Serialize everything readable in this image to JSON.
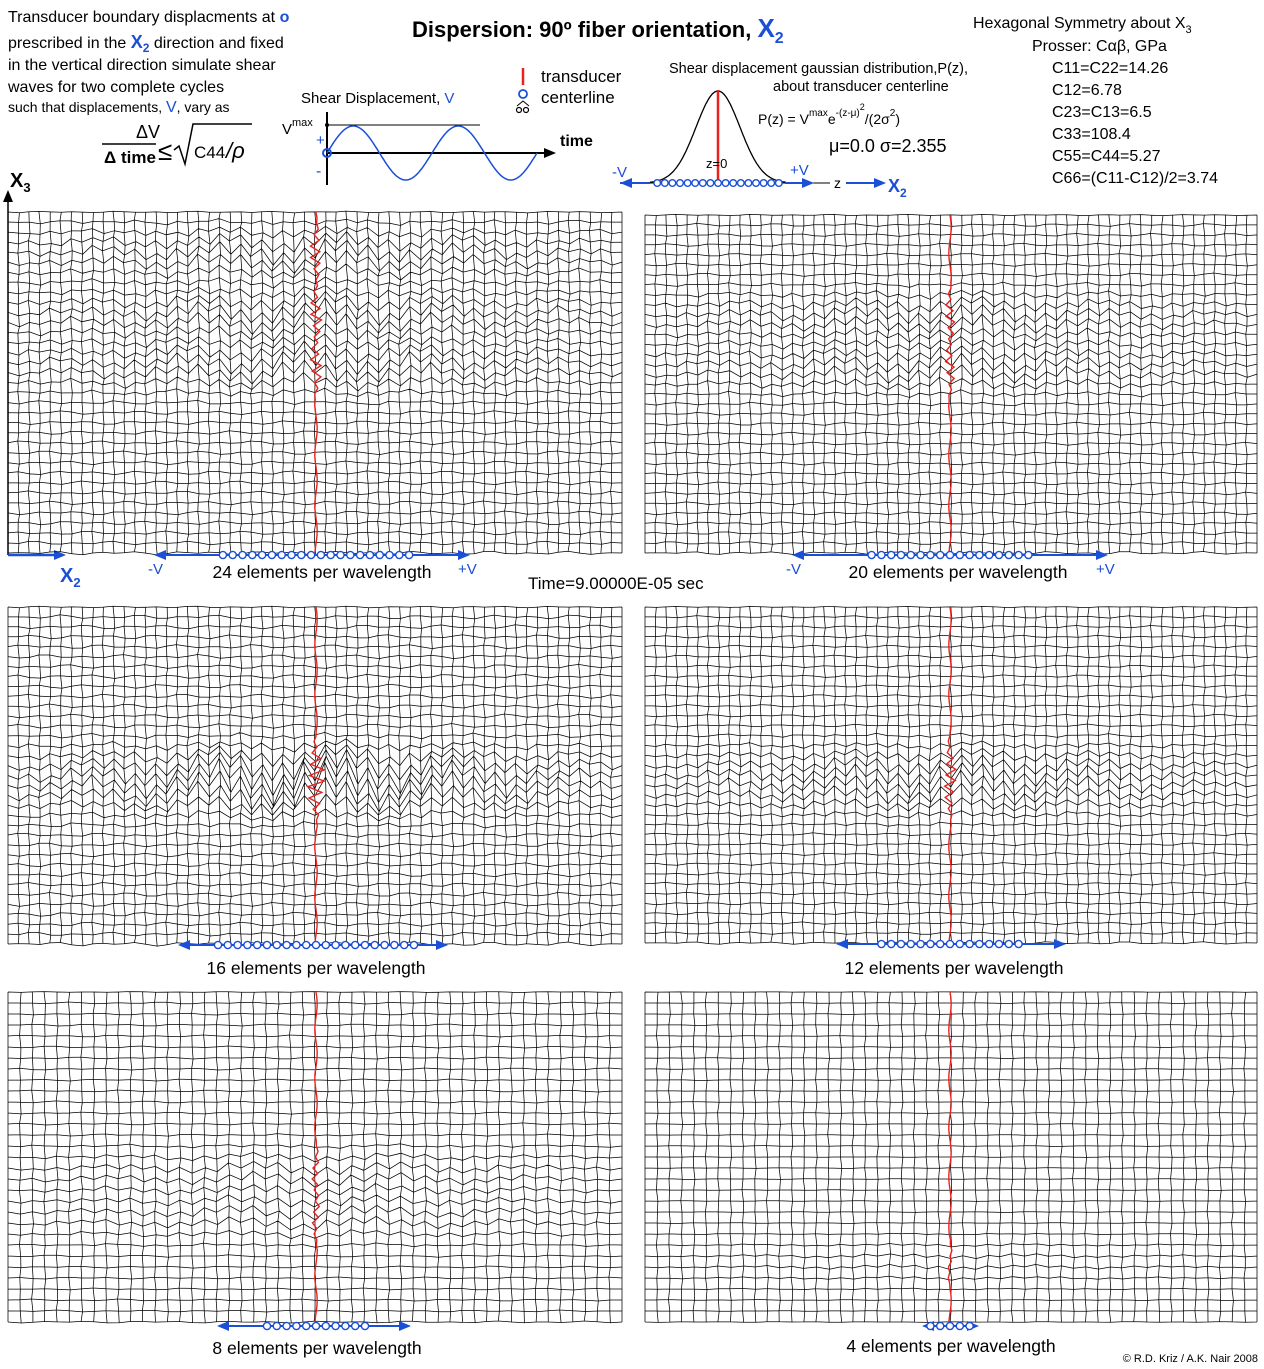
{
  "title": {
    "main": "Dispersion: 90º fiber orientation,",
    "axis": "X",
    "axis_sub": "2"
  },
  "intro": {
    "line1": "Transducer boundary displacments at",
    "line1_marker": "o",
    "line2_a": "prescribed in the",
    "line2_axis": "X",
    "line2_axis_sub": "2",
    "line2_b": "direction and fixed",
    "line3": "in the vertical direction simulate shear",
    "line4": "waves for two complete cycles",
    "line5_a": "such that displacements,",
    "line5_v": "V",
    "line5_b": ", vary as",
    "frac_num": "ΔV",
    "frac_den": "Δ time",
    "leq": "≤",
    "sqrt_arg": "C44",
    "sqrt_div": "/ρ"
  },
  "shear_plot": {
    "label": "Shear Displacement,",
    "label_v": "V",
    "vmax": "V",
    "vmax_sup": "max",
    "plus": "+",
    "minus": "-",
    "time_label": "time"
  },
  "legend": {
    "line1": "transducer",
    "line2": "centerline"
  },
  "gaussian": {
    "label1": "Shear displacement gaussian distribution,P(z),",
    "label2": "about transducer centerline",
    "formula": "P(z) = V",
    "formula_sup1": "max",
    "formula_mid": "e",
    "formula_sup2": "-(z-μ)",
    "formula_sup3": "2",
    "formula_tail": "/(2σ",
    "formula_sup4": "2",
    "formula_end": ")",
    "params": "μ=0.0   σ=2.355",
    "z0": "z=0",
    "minus_v": "-V",
    "plus_v": "+V",
    "z_axis": "z",
    "x_axis": "X",
    "x_axis_sub": "2"
  },
  "properties": {
    "title": "Hexagonal Symmetry about X",
    "title_sub": "3",
    "subtitle": "Prosser: Cαβ, GPa",
    "lines": [
      "C11=C22=14.26",
      "C12=6.78",
      "C23=C13=6.5",
      "C33=108.4",
      "C55=C44=5.27",
      "C66=(C11-C12)/2=3.74"
    ]
  },
  "axes": {
    "x3": "X",
    "x3_sub": "3",
    "x2": "X",
    "x2_sub": "2"
  },
  "time_label": "Time=9.00000E-05 sec",
  "panels": [
    {
      "label": "24 elements per wavelength",
      "minus": "-V",
      "plus": "+V"
    },
    {
      "label": "20 elements per wavelength",
      "minus": "-V",
      "plus": "+V"
    },
    {
      "label": "16 elements per wavelength",
      "minus": "",
      "plus": ""
    },
    {
      "label": "12 elements per wavelength",
      "minus": "",
      "plus": ""
    },
    {
      "label": "8 elements per wavelength",
      "minus": "",
      "plus": ""
    },
    {
      "label": "4 elements per wavelength",
      "minus": "",
      "plus": ""
    }
  ],
  "credit": "© R.D. Kriz / A.K. Nair 2008",
  "colors": {
    "accent": "#1a4fd6",
    "centerline": "#e8231e",
    "mesh": "#000000"
  }
}
